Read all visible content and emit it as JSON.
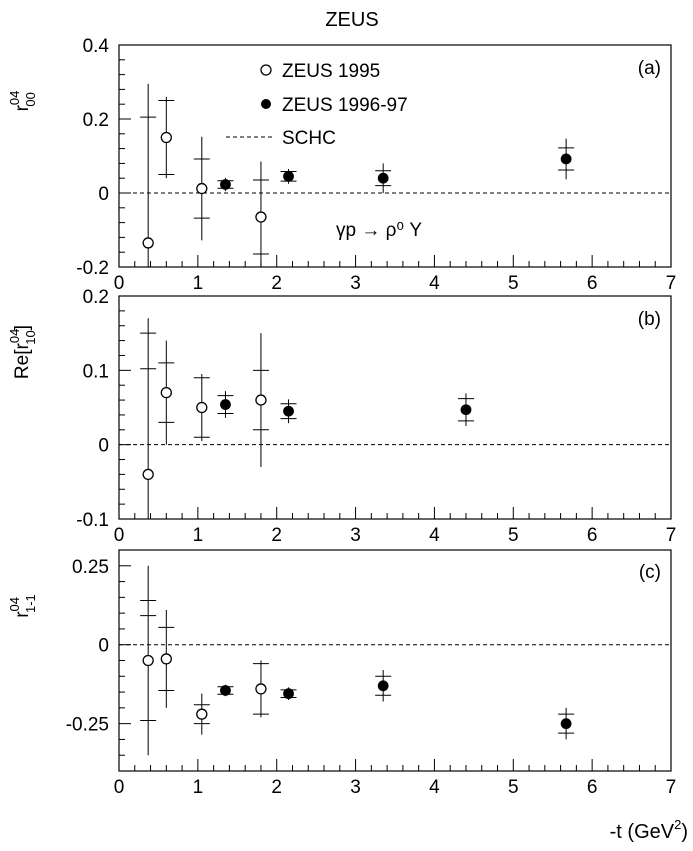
{
  "title": "ZEUS",
  "xlabel": "-t (GeV",
  "xlabel_sup": "2",
  "xlabel_close": ")",
  "legend": {
    "zeus1995": "ZEUS 1995",
    "zeus199697": "ZEUS 1996-97",
    "schc": "SCHC"
  },
  "reaction": "γp → ρ⁰ Y",
  "chart_data": [
    {
      "type": "scatter",
      "panel": "(a)",
      "ylabel": "r^04_00",
      "xlim": [
        0,
        7
      ],
      "ylim": [
        -0.2,
        0.4
      ],
      "yticks": [
        -0.2,
        0,
        0.2,
        0.4
      ],
      "ytick_labels": [
        "-0.2",
        "0",
        "0.2",
        "0.4"
      ],
      "xticks": [
        0,
        1,
        2,
        3,
        4,
        5,
        6,
        7
      ],
      "xtick_labels": [
        "0",
        "1",
        "2",
        "3",
        "4",
        "5",
        "6",
        "7"
      ],
      "reference_line": 0,
      "series": [
        {
          "name": "ZEUS 1995",
          "marker": "open-circle",
          "x": [
            0.37,
            0.6,
            1.05,
            1.8
          ],
          "y": [
            -0.135,
            0.15,
            0.012,
            -0.065
          ],
          "err_stat": [
            0.34,
            0.1,
            0.08,
            0.1
          ],
          "err_tot": [
            0.43,
            0.11,
            0.14,
            0.15
          ]
        },
        {
          "name": "ZEUS 1996-97",
          "marker": "filled-circle",
          "x": [
            1.35,
            2.15,
            3.35,
            5.67
          ],
          "y": [
            0.023,
            0.045,
            0.04,
            0.092
          ],
          "err_stat": [
            0.01,
            0.013,
            0.02,
            0.03
          ],
          "err_tot": [
            0.018,
            0.02,
            0.04,
            0.055
          ]
        }
      ]
    },
    {
      "type": "scatter",
      "panel": "(b)",
      "ylabel": "Re[r^04_10]",
      "xlim": [
        0,
        7
      ],
      "ylim": [
        -0.1,
        0.2
      ],
      "yticks": [
        -0.1,
        0,
        0.1,
        0.2
      ],
      "ytick_labels": [
        "-0.1",
        "0",
        "0.1",
        "0.2"
      ],
      "xticks": [
        0,
        1,
        2,
        3,
        4,
        5,
        6,
        7
      ],
      "xtick_labels": [
        "0",
        "1",
        "2",
        "3",
        "4",
        "5",
        "6",
        "7"
      ],
      "reference_line": 0,
      "series": [
        {
          "name": "ZEUS 1995",
          "marker": "open-circle",
          "x": [
            0.37,
            0.6,
            1.05,
            1.8
          ],
          "y": [
            -0.04,
            0.07,
            0.05,
            0.06
          ],
          "err_stat": [
            0.19,
            0.04,
            0.04,
            0.04
          ],
          "err_tot": [
            0.21,
            0.07,
            0.045,
            0.09
          ]
        },
        {
          "name": "ZEUS 1996-97",
          "marker": "filled-circle",
          "x": [
            1.35,
            2.15,
            4.4
          ],
          "y": [
            0.054,
            0.045,
            0.047
          ],
          "err_stat": [
            0.012,
            0.01,
            0.015
          ],
          "err_tot": [
            0.018,
            0.016,
            0.022
          ]
        }
      ]
    },
    {
      "type": "scatter",
      "panel": "(c)",
      "ylabel": "r^04_1-1",
      "xlim": [
        0,
        7
      ],
      "ylim": [
        -0.4,
        0.3
      ],
      "yticks": [
        -0.25,
        0,
        0.25
      ],
      "ytick_labels": [
        "-0.25",
        "0",
        "0.25"
      ],
      "xticks": [
        0,
        1,
        2,
        3,
        4,
        5,
        6,
        7
      ],
      "xtick_labels": [
        "0",
        "1",
        "2",
        "3",
        "4",
        "5",
        "6",
        "7"
      ],
      "reference_line": 0,
      "series": [
        {
          "name": "ZEUS 1995",
          "marker": "open-circle",
          "x": [
            0.37,
            0.6,
            1.05,
            1.8
          ],
          "y": [
            -0.05,
            -0.045,
            -0.22,
            -0.14
          ],
          "err_stat": [
            0.19,
            0.1,
            0.03,
            0.08
          ],
          "err_tot": [
            0.3,
            0.155,
            0.065,
            0.09
          ]
        },
        {
          "name": "ZEUS 1996-97",
          "marker": "filled-circle",
          "x": [
            1.35,
            2.15,
            3.35,
            5.67
          ],
          "y": [
            -0.145,
            -0.155,
            -0.13,
            -0.25
          ],
          "err_stat": [
            0.012,
            0.012,
            0.03,
            0.03
          ],
          "err_tot": [
            0.018,
            0.02,
            0.05,
            0.05
          ]
        }
      ]
    }
  ]
}
